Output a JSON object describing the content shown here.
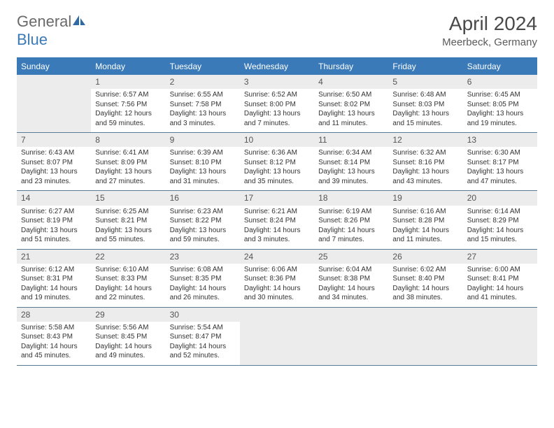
{
  "logo": {
    "text_general": "General",
    "text_blue": "Blue"
  },
  "title": "April 2024",
  "location": "Meerbeck, Germany",
  "colors": {
    "header_bg": "#3a7ab8",
    "header_text": "#ffffff",
    "daynum_bg": "#ececec",
    "empty_bg": "#ececec",
    "body_text": "#333333",
    "rule": "#5a7a94"
  },
  "weekdays": [
    "Sunday",
    "Monday",
    "Tuesday",
    "Wednesday",
    "Thursday",
    "Friday",
    "Saturday"
  ],
  "weeks": [
    [
      {
        "num": "",
        "empty": true
      },
      {
        "num": "1",
        "sunrise": "Sunrise: 6:57 AM",
        "sunset": "Sunset: 7:56 PM",
        "day1": "Daylight: 12 hours",
        "day2": "and 59 minutes."
      },
      {
        "num": "2",
        "sunrise": "Sunrise: 6:55 AM",
        "sunset": "Sunset: 7:58 PM",
        "day1": "Daylight: 13 hours",
        "day2": "and 3 minutes."
      },
      {
        "num": "3",
        "sunrise": "Sunrise: 6:52 AM",
        "sunset": "Sunset: 8:00 PM",
        "day1": "Daylight: 13 hours",
        "day2": "and 7 minutes."
      },
      {
        "num": "4",
        "sunrise": "Sunrise: 6:50 AM",
        "sunset": "Sunset: 8:02 PM",
        "day1": "Daylight: 13 hours",
        "day2": "and 11 minutes."
      },
      {
        "num": "5",
        "sunrise": "Sunrise: 6:48 AM",
        "sunset": "Sunset: 8:03 PM",
        "day1": "Daylight: 13 hours",
        "day2": "and 15 minutes."
      },
      {
        "num": "6",
        "sunrise": "Sunrise: 6:45 AM",
        "sunset": "Sunset: 8:05 PM",
        "day1": "Daylight: 13 hours",
        "day2": "and 19 minutes."
      }
    ],
    [
      {
        "num": "7",
        "sunrise": "Sunrise: 6:43 AM",
        "sunset": "Sunset: 8:07 PM",
        "day1": "Daylight: 13 hours",
        "day2": "and 23 minutes."
      },
      {
        "num": "8",
        "sunrise": "Sunrise: 6:41 AM",
        "sunset": "Sunset: 8:09 PM",
        "day1": "Daylight: 13 hours",
        "day2": "and 27 minutes."
      },
      {
        "num": "9",
        "sunrise": "Sunrise: 6:39 AM",
        "sunset": "Sunset: 8:10 PM",
        "day1": "Daylight: 13 hours",
        "day2": "and 31 minutes."
      },
      {
        "num": "10",
        "sunrise": "Sunrise: 6:36 AM",
        "sunset": "Sunset: 8:12 PM",
        "day1": "Daylight: 13 hours",
        "day2": "and 35 minutes."
      },
      {
        "num": "11",
        "sunrise": "Sunrise: 6:34 AM",
        "sunset": "Sunset: 8:14 PM",
        "day1": "Daylight: 13 hours",
        "day2": "and 39 minutes."
      },
      {
        "num": "12",
        "sunrise": "Sunrise: 6:32 AM",
        "sunset": "Sunset: 8:16 PM",
        "day1": "Daylight: 13 hours",
        "day2": "and 43 minutes."
      },
      {
        "num": "13",
        "sunrise": "Sunrise: 6:30 AM",
        "sunset": "Sunset: 8:17 PM",
        "day1": "Daylight: 13 hours",
        "day2": "and 47 minutes."
      }
    ],
    [
      {
        "num": "14",
        "sunrise": "Sunrise: 6:27 AM",
        "sunset": "Sunset: 8:19 PM",
        "day1": "Daylight: 13 hours",
        "day2": "and 51 minutes."
      },
      {
        "num": "15",
        "sunrise": "Sunrise: 6:25 AM",
        "sunset": "Sunset: 8:21 PM",
        "day1": "Daylight: 13 hours",
        "day2": "and 55 minutes."
      },
      {
        "num": "16",
        "sunrise": "Sunrise: 6:23 AM",
        "sunset": "Sunset: 8:22 PM",
        "day1": "Daylight: 13 hours",
        "day2": "and 59 minutes."
      },
      {
        "num": "17",
        "sunrise": "Sunrise: 6:21 AM",
        "sunset": "Sunset: 8:24 PM",
        "day1": "Daylight: 14 hours",
        "day2": "and 3 minutes."
      },
      {
        "num": "18",
        "sunrise": "Sunrise: 6:19 AM",
        "sunset": "Sunset: 8:26 PM",
        "day1": "Daylight: 14 hours",
        "day2": "and 7 minutes."
      },
      {
        "num": "19",
        "sunrise": "Sunrise: 6:16 AM",
        "sunset": "Sunset: 8:28 PM",
        "day1": "Daylight: 14 hours",
        "day2": "and 11 minutes."
      },
      {
        "num": "20",
        "sunrise": "Sunrise: 6:14 AM",
        "sunset": "Sunset: 8:29 PM",
        "day1": "Daylight: 14 hours",
        "day2": "and 15 minutes."
      }
    ],
    [
      {
        "num": "21",
        "sunrise": "Sunrise: 6:12 AM",
        "sunset": "Sunset: 8:31 PM",
        "day1": "Daylight: 14 hours",
        "day2": "and 19 minutes."
      },
      {
        "num": "22",
        "sunrise": "Sunrise: 6:10 AM",
        "sunset": "Sunset: 8:33 PM",
        "day1": "Daylight: 14 hours",
        "day2": "and 22 minutes."
      },
      {
        "num": "23",
        "sunrise": "Sunrise: 6:08 AM",
        "sunset": "Sunset: 8:35 PM",
        "day1": "Daylight: 14 hours",
        "day2": "and 26 minutes."
      },
      {
        "num": "24",
        "sunrise": "Sunrise: 6:06 AM",
        "sunset": "Sunset: 8:36 PM",
        "day1": "Daylight: 14 hours",
        "day2": "and 30 minutes."
      },
      {
        "num": "25",
        "sunrise": "Sunrise: 6:04 AM",
        "sunset": "Sunset: 8:38 PM",
        "day1": "Daylight: 14 hours",
        "day2": "and 34 minutes."
      },
      {
        "num": "26",
        "sunrise": "Sunrise: 6:02 AM",
        "sunset": "Sunset: 8:40 PM",
        "day1": "Daylight: 14 hours",
        "day2": "and 38 minutes."
      },
      {
        "num": "27",
        "sunrise": "Sunrise: 6:00 AM",
        "sunset": "Sunset: 8:41 PM",
        "day1": "Daylight: 14 hours",
        "day2": "and 41 minutes."
      }
    ],
    [
      {
        "num": "28",
        "sunrise": "Sunrise: 5:58 AM",
        "sunset": "Sunset: 8:43 PM",
        "day1": "Daylight: 14 hours",
        "day2": "and 45 minutes."
      },
      {
        "num": "29",
        "sunrise": "Sunrise: 5:56 AM",
        "sunset": "Sunset: 8:45 PM",
        "day1": "Daylight: 14 hours",
        "day2": "and 49 minutes."
      },
      {
        "num": "30",
        "sunrise": "Sunrise: 5:54 AM",
        "sunset": "Sunset: 8:47 PM",
        "day1": "Daylight: 14 hours",
        "day2": "and 52 minutes."
      },
      {
        "num": "",
        "empty": true
      },
      {
        "num": "",
        "empty": true
      },
      {
        "num": "",
        "empty": true
      },
      {
        "num": "",
        "empty": true
      }
    ]
  ]
}
